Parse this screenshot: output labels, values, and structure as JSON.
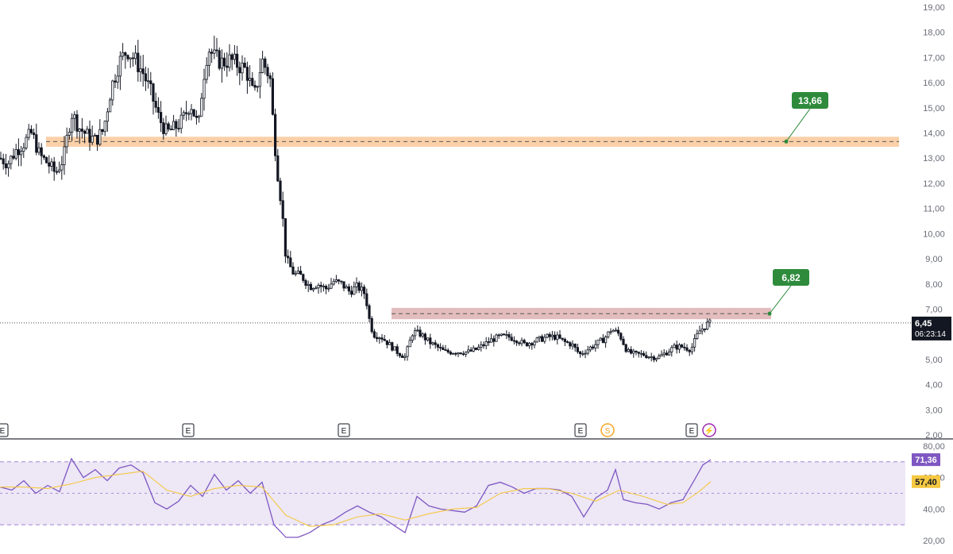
{
  "chart_data": [
    {
      "type": "candlestick",
      "ylim": [
        2.0,
        19.0
      ],
      "y_ticks": [
        "19,00",
        "18,00",
        "17,00",
        "16,00",
        "15,00",
        "14,00",
        "13,00",
        "12,00",
        "11,00",
        "10,00",
        "9,00",
        "8,00",
        "7,00",
        "6,00",
        "5,00",
        "4,00",
        "3,00",
        "2,00"
      ],
      "y_tick_values": [
        19,
        18,
        17,
        16,
        15,
        14,
        13,
        12,
        11,
        10,
        9,
        8,
        7,
        6,
        5,
        4,
        3,
        2
      ],
      "grid": false,
      "last_price": {
        "value": 6.45,
        "label": "6,45",
        "countdown": "06:23:14"
      },
      "zones": [
        {
          "name": "resistance-zone-upper",
          "low": 13.45,
          "high": 13.85,
          "line": 13.66,
          "color": "#f9c89a",
          "target_label": "13,66"
        },
        {
          "name": "resistance-zone-lower",
          "low": 6.6,
          "high": 7.05,
          "line": 6.82,
          "color": "#d9a7a7",
          "target_label": "6,82"
        }
      ],
      "price_path": [
        [
          0,
          13.0
        ],
        [
          10,
          12.8
        ],
        [
          20,
          13.3
        ],
        [
          30,
          13.6
        ],
        [
          40,
          14.0
        ],
        [
          50,
          13.1
        ],
        [
          60,
          12.8
        ],
        [
          70,
          12.4
        ],
        [
          80,
          13.0
        ],
        [
          90,
          14.8
        ],
        [
          100,
          14.2
        ],
        [
          110,
          13.9
        ],
        [
          120,
          13.7
        ],
        [
          130,
          14.1
        ],
        [
          140,
          15.8
        ],
        [
          150,
          16.8
        ],
        [
          160,
          17.3
        ],
        [
          170,
          16.9
        ],
        [
          180,
          16.4
        ],
        [
          190,
          15.6
        ],
        [
          200,
          14.6
        ],
        [
          210,
          14.0
        ],
        [
          220,
          14.2
        ],
        [
          230,
          14.5
        ],
        [
          240,
          15.2
        ],
        [
          250,
          14.2
        ],
        [
          255,
          16.0
        ],
        [
          262,
          17.4
        ],
        [
          270,
          17.0
        ],
        [
          280,
          16.8
        ],
        [
          290,
          16.9
        ],
        [
          300,
          16.7
        ],
        [
          310,
          16.5
        ],
        [
          320,
          15.4
        ],
        [
          330,
          16.9
        ],
        [
          340,
          16.2
        ],
        [
          345,
          13.9
        ],
        [
          350,
          12.3
        ],
        [
          355,
          11.0
        ],
        [
          360,
          9.0
        ],
        [
          370,
          8.4
        ],
        [
          380,
          8.3
        ],
        [
          390,
          7.9
        ],
        [
          400,
          8.0
        ],
        [
          410,
          7.8
        ],
        [
          420,
          8.1
        ],
        [
          430,
          8.0
        ],
        [
          440,
          7.7
        ],
        [
          450,
          7.9
        ],
        [
          460,
          7.6
        ],
        [
          465,
          6.6
        ],
        [
          470,
          6.0
        ],
        [
          480,
          5.9
        ],
        [
          490,
          5.6
        ],
        [
          500,
          5.3
        ],
        [
          510,
          5.1
        ],
        [
          520,
          6.1
        ],
        [
          530,
          6.0
        ],
        [
          540,
          5.7
        ],
        [
          550,
          5.5
        ],
        [
          560,
          5.3
        ],
        [
          570,
          5.3
        ],
        [
          580,
          5.3
        ],
        [
          590,
          5.3
        ],
        [
          600,
          5.4
        ],
        [
          610,
          5.6
        ],
        [
          620,
          5.8
        ],
        [
          630,
          5.9
        ],
        [
          640,
          5.9
        ],
        [
          650,
          5.8
        ],
        [
          660,
          5.6
        ],
        [
          670,
          5.7
        ],
        [
          680,
          5.8
        ],
        [
          690,
          5.9
        ],
        [
          700,
          5.9
        ],
        [
          710,
          5.7
        ],
        [
          720,
          5.6
        ],
        [
          730,
          5.2
        ],
        [
          740,
          5.4
        ],
        [
          750,
          5.6
        ],
        [
          760,
          5.8
        ],
        [
          770,
          6.2
        ],
        [
          780,
          6.0
        ],
        [
          790,
          5.3
        ],
        [
          800,
          5.2
        ],
        [
          810,
          5.2
        ],
        [
          820,
          5.1
        ],
        [
          830,
          5.1
        ],
        [
          840,
          5.3
        ],
        [
          850,
          5.5
        ],
        [
          860,
          5.5
        ],
        [
          870,
          5.4
        ],
        [
          880,
          6.1
        ],
        [
          890,
          6.4
        ],
        [
          895,
          6.45
        ]
      ]
    },
    {
      "type": "line",
      "name": "rsi-panel",
      "ylim": [
        20,
        80
      ],
      "y_ticks": [
        "80,00",
        "60,00",
        "40,00",
        "20,00"
      ],
      "y_tick_values": [
        80,
        60,
        40,
        20
      ],
      "band": [
        30,
        70
      ],
      "midline": 50,
      "series": [
        {
          "role": "rsi",
          "color": "#7e57c2",
          "last_label": "71,36",
          "last_value": 71.36,
          "points": [
            [
              0,
              54
            ],
            [
              15,
              52
            ],
            [
              30,
              58
            ],
            [
              45,
              50
            ],
            [
              60,
              55
            ],
            [
              75,
              51
            ],
            [
              90,
              72
            ],
            [
              105,
              60
            ],
            [
              120,
              65
            ],
            [
              135,
              58
            ],
            [
              150,
              66
            ],
            [
              165,
              68
            ],
            [
              180,
              63
            ],
            [
              195,
              44
            ],
            [
              210,
              40
            ],
            [
              225,
              45
            ],
            [
              240,
              55
            ],
            [
              255,
              48
            ],
            [
              270,
              62
            ],
            [
              285,
              52
            ],
            [
              300,
              58
            ],
            [
              315,
              50
            ],
            [
              330,
              57
            ],
            [
              345,
              30
            ],
            [
              360,
              22
            ],
            [
              375,
              22
            ],
            [
              390,
              25
            ],
            [
              405,
              30
            ],
            [
              420,
              33
            ],
            [
              435,
              38
            ],
            [
              450,
              42
            ],
            [
              465,
              38
            ],
            [
              480,
              35
            ],
            [
              495,
              30
            ],
            [
              510,
              25
            ],
            [
              525,
              48
            ],
            [
              540,
              42
            ],
            [
              555,
              40
            ],
            [
              570,
              39
            ],
            [
              585,
              38
            ],
            [
              600,
              42
            ],
            [
              615,
              55
            ],
            [
              630,
              57
            ],
            [
              645,
              54
            ],
            [
              660,
              50
            ],
            [
              675,
              53
            ],
            [
              690,
              53
            ],
            [
              705,
              52
            ],
            [
              720,
              48
            ],
            [
              735,
              35
            ],
            [
              750,
              47
            ],
            [
              765,
              52
            ],
            [
              775,
              65
            ],
            [
              785,
              46
            ],
            [
              800,
              44
            ],
            [
              815,
              43
            ],
            [
              830,
              40
            ],
            [
              845,
              44
            ],
            [
              860,
              46
            ],
            [
              875,
              59
            ],
            [
              885,
              68
            ],
            [
              895,
              71.36
            ]
          ]
        },
        {
          "role": "rsi-ma",
          "color": "#f5c842",
          "last_label": "57,40",
          "last_value": 57.4,
          "points": [
            [
              0,
              54
            ],
            [
              30,
              54
            ],
            [
              60,
              53
            ],
            [
              90,
              56
            ],
            [
              120,
              60
            ],
            [
              150,
              62
            ],
            [
              180,
              64
            ],
            [
              210,
              52
            ],
            [
              240,
              48
            ],
            [
              270,
              53
            ],
            [
              300,
              55
            ],
            [
              330,
              54
            ],
            [
              345,
              45
            ],
            [
              360,
              36
            ],
            [
              390,
              29
            ],
            [
              420,
              30
            ],
            [
              450,
              35
            ],
            [
              480,
              37
            ],
            [
              510,
              33
            ],
            [
              540,
              37
            ],
            [
              570,
              40
            ],
            [
              600,
              41
            ],
            [
              630,
              50
            ],
            [
              660,
              53
            ],
            [
              690,
              53
            ],
            [
              720,
              50
            ],
            [
              750,
              45
            ],
            [
              780,
              52
            ],
            [
              810,
              48
            ],
            [
              840,
              43
            ],
            [
              860,
              44
            ],
            [
              880,
              51
            ],
            [
              895,
              57.4
            ]
          ]
        }
      ]
    }
  ],
  "events": [
    {
      "name": "earnings-marker",
      "label": "E"
    },
    {
      "name": "earnings-marker",
      "label": "E"
    },
    {
      "name": "earnings-marker",
      "label": "E"
    },
    {
      "name": "earnings-marker",
      "label": "E"
    },
    {
      "name": "split-marker",
      "label": "S"
    },
    {
      "name": "earnings-marker",
      "label": "E"
    },
    {
      "name": "flash-marker",
      "label": "⚡"
    }
  ],
  "colors": {
    "candle": "#131722",
    "text": "#6a6d78",
    "target_badge": "#2e8b3c",
    "rsi_band_fill": "#ede7f6",
    "rsi_band_line": "#9575cd"
  }
}
